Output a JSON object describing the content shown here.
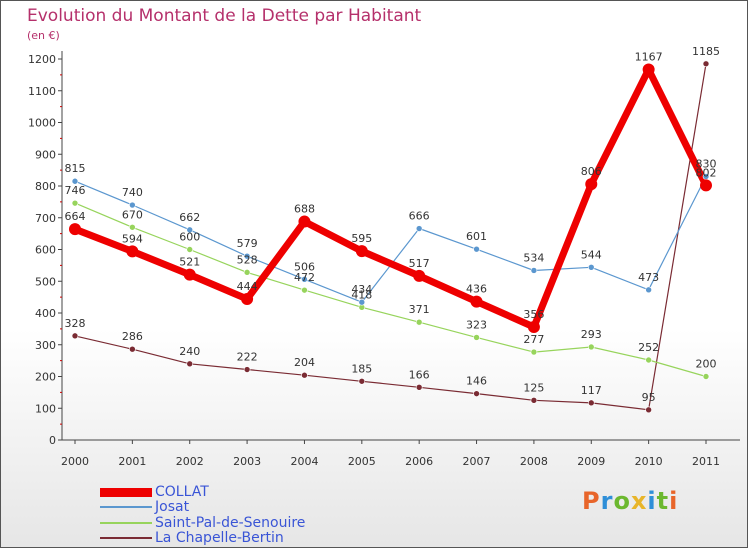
{
  "header": {
    "title": "Evolution du Montant de la Dette par Habitant",
    "unit": "(en €)"
  },
  "logo": {
    "text": "Proxiti"
  },
  "colors": {
    "title": "#b5306b",
    "legend_text": "#3a55d6",
    "logo_letters": [
      "#e8652a",
      "#2f8fd8",
      "#6cb82f",
      "#e8b52a",
      "#2f8fd8",
      "#6cb82f",
      "#e8652a"
    ]
  },
  "chart_data": {
    "type": "line",
    "title": "Evolution du Montant de la Dette par Habitant",
    "ylabel": "(en €)",
    "xlabel": "",
    "x": [
      "2000",
      "2001",
      "2002",
      "2003",
      "2004",
      "2005",
      "2006",
      "2007",
      "2008",
      "2009",
      "2010",
      "2011"
    ],
    "ylim": [
      0,
      1200
    ],
    "yticks": [
      0,
      100,
      200,
      300,
      400,
      500,
      600,
      700,
      800,
      900,
      1000,
      1100,
      1200
    ],
    "grid": false,
    "legend_position": "bottom-left",
    "series": [
      {
        "name": "COLLAT",
        "color": "#ee0000",
        "width": 7,
        "values": [
          664,
          594,
          521,
          444,
          688,
          595,
          517,
          436,
          356,
          806,
          1167,
          802
        ]
      },
      {
        "name": "Josat",
        "color": "#5b97cf",
        "width": 1.2,
        "values": [
          815,
          740,
          662,
          579,
          506,
          434,
          666,
          601,
          534,
          544,
          473,
          830
        ]
      },
      {
        "name": "Saint-Pal-de-Senouire",
        "color": "#97d45c",
        "width": 1.2,
        "values": [
          746,
          670,
          600,
          528,
          472,
          418,
          371,
          323,
          277,
          293,
          252,
          200
        ]
      },
      {
        "name": "La Chapelle-Bertin",
        "color": "#7a2b33",
        "width": 1.2,
        "values": [
          328,
          286,
          240,
          222,
          204,
          185,
          166,
          146,
          125,
          117,
          95,
          1185
        ]
      }
    ]
  }
}
